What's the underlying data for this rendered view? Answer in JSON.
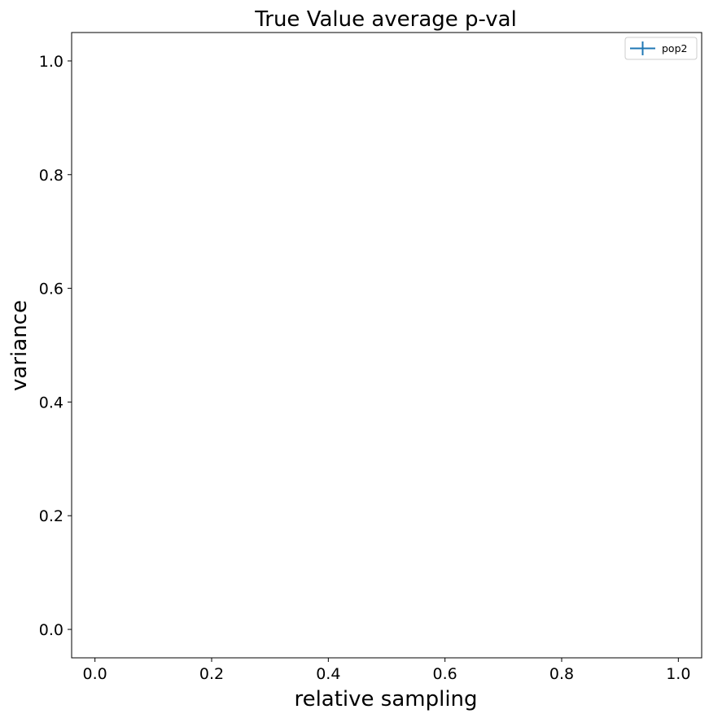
{
  "chart_data": {
    "type": "line",
    "title": "True Value average p-val",
    "xlabel": "relative sampling",
    "ylabel": "variance",
    "xlim": [
      -0.04,
      1.04
    ],
    "ylim": [
      -0.05,
      1.05
    ],
    "x_ticks": [
      0.0,
      0.2,
      0.4,
      0.6,
      0.8,
      1.0
    ],
    "x_tick_labels": [
      "0.0",
      "0.2",
      "0.4",
      "0.6",
      "0.8",
      "1.0"
    ],
    "y_ticks": [
      0.0,
      0.2,
      0.4,
      0.6,
      0.8,
      1.0
    ],
    "y_tick_labels": [
      "0.0",
      "0.2",
      "0.4",
      "0.6",
      "0.8",
      "1.0"
    ],
    "grid": false,
    "legend": "top-right",
    "series": [
      {
        "name": "pop2",
        "color": "#1f77b4",
        "marker": "errorbar",
        "x": [],
        "y": []
      }
    ]
  }
}
